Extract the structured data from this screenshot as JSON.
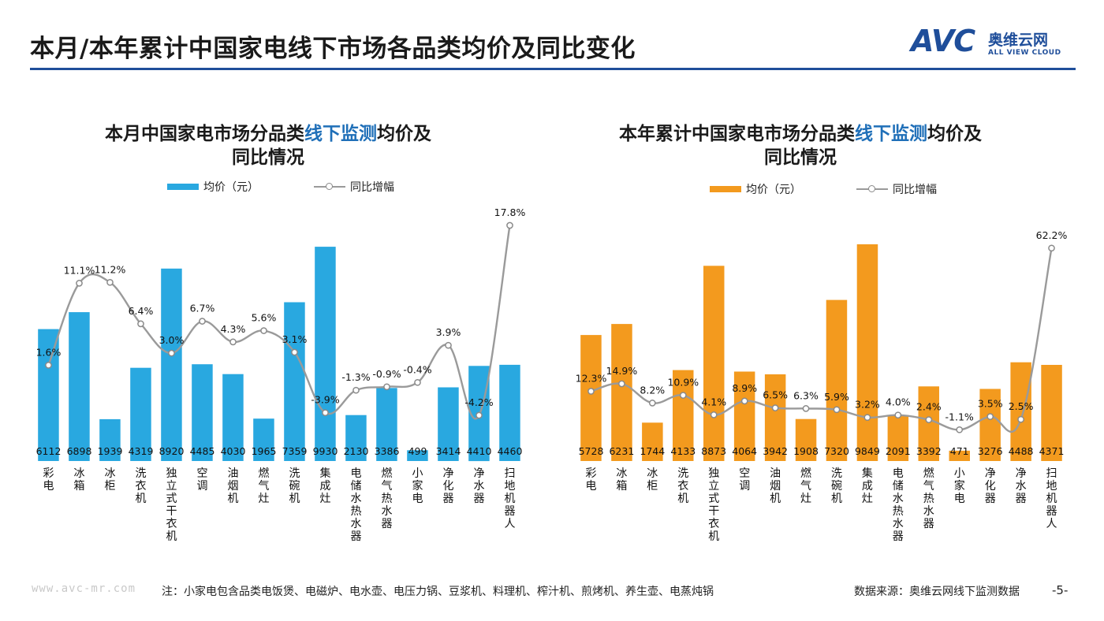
{
  "page": {
    "title": "本月/本年累计中国家电线下市场各品类均价及同比变化",
    "logo_mark": "AVC",
    "logo_cn": "奥维云网",
    "logo_en": "ALL VIEW CLOUD",
    "brand_color": "#1f4e9a",
    "site": "www.avc-mr.com",
    "footnote": "注：小家电包含品类电饭煲、电磁炉、电水壶、电压力锅、豆浆机、料理机、榨汁机、煎烤机、养生壶、电蒸炖锅",
    "source": "数据来源：奥维云网线下监测数据",
    "page_number": "-5-"
  },
  "chart_data": [
    {
      "type": "bar",
      "title_part1": "本月中国家电市场分品类",
      "title_highlight": "线下监测",
      "title_part2": "均价及",
      "title_line2": "同比情况",
      "legend_bar": "均价（元）",
      "legend_line": "同比增幅",
      "bar_color": "#29a8e0",
      "line_color": "#9a9a9a",
      "categories": [
        "彩电",
        "冰箱",
        "冰柜",
        "洗衣机",
        "独立式干衣机",
        "空调",
        "油烟机",
        "燃气灶",
        "洗碗机",
        "集成灶",
        "电储水热水器",
        "燃气热水器",
        "小家电",
        "净化器",
        "净水器",
        "扫地机器人"
      ],
      "series": [
        {
          "name": "均价（元）",
          "values": [
            6112,
            6898,
            1939,
            4319,
            8920,
            4485,
            4030,
            1965,
            7359,
            9930,
            2130,
            3386,
            499,
            3414,
            4410,
            4460
          ]
        },
        {
          "name": "同比增幅",
          "values": [
            1.6,
            11.1,
            11.2,
            6.4,
            3.0,
            6.7,
            4.3,
            5.6,
            3.1,
            -3.9,
            -1.3,
            -0.9,
            -0.4,
            3.9,
            -4.2,
            17.8
          ],
          "labels": [
            "1.6%",
            "11.1%",
            "11.2%",
            "6.4%",
            "3.0%",
            "6.7%",
            "4.3%",
            "5.6%",
            "3.1%",
            "-3.9%",
            "-1.3%",
            "-0.9%",
            "-0.4%",
            "3.9%",
            "-4.2%",
            "17.8%"
          ]
        }
      ],
      "bar_ylim": [
        0,
        12600
      ],
      "line_ylim": [
        -9.5,
        22
      ]
    },
    {
      "type": "bar",
      "title_part1": "本年累计中国家电市场分品类",
      "title_highlight": "线下监测",
      "title_part2": "均价及",
      "title_line2": "同比情况",
      "legend_bar": "均价（元）",
      "legend_line": "同比增幅",
      "bar_color": "#f39a1e",
      "line_color": "#9a9a9a",
      "categories": [
        "彩电",
        "冰箱",
        "冰柜",
        "洗衣机",
        "独立式干衣机",
        "空调",
        "油烟机",
        "燃气灶",
        "洗碗机",
        "集成灶",
        "电储水热水器",
        "燃气热水器",
        "小家电",
        "净化器",
        "净水器",
        "扫地机器人"
      ],
      "series": [
        {
          "name": "均价（元）",
          "values": [
            5728,
            6231,
            1744,
            4133,
            8873,
            4064,
            3942,
            1908,
            7320,
            9849,
            2091,
            3392,
            471,
            3276,
            4488,
            4371
          ]
        },
        {
          "name": "同比增幅",
          "values": [
            12.3,
            14.9,
            8.2,
            10.9,
            4.1,
            8.9,
            6.5,
            6.3,
            5.9,
            3.2,
            4.0,
            2.4,
            -1.1,
            3.5,
            2.5,
            62.2
          ],
          "labels": [
            "12.3%",
            "14.9%",
            "8.2%",
            "10.9%",
            "4.1%",
            "8.9%",
            "6.5%",
            "6.3%",
            "5.9%",
            "3.2%",
            "4.0%",
            "2.4%",
            "-1.1%",
            "3.5%",
            "2.5%",
            "62.2%"
          ]
        }
      ],
      "bar_ylim": [
        0,
        12000
      ],
      "line_ylim": [
        -12,
        80
      ]
    }
  ]
}
